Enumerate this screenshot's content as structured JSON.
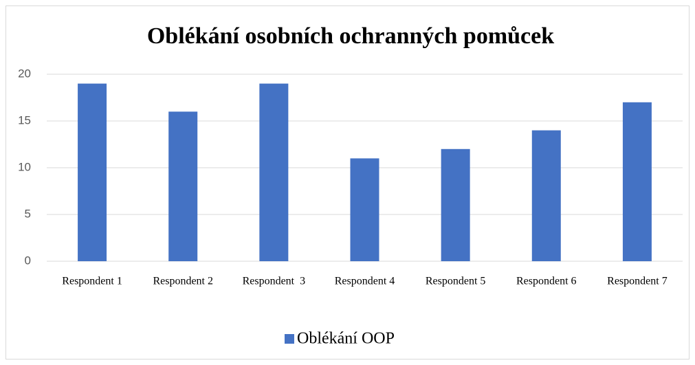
{
  "chart_data": {
    "type": "bar",
    "title": "Oblékání osobních ochranných pomůcek",
    "categories": [
      "Respondent 1",
      "Respondent 2",
      "Respondent  3",
      "Respondent 4",
      "Respondent 5",
      "Respondent 6",
      "Respondent 7"
    ],
    "series": [
      {
        "name": "Oblékání OOP",
        "color": "#4472c4",
        "values": [
          19,
          16,
          19,
          11,
          12,
          14,
          17
        ]
      }
    ],
    "ylim": [
      0,
      20
    ],
    "yticks": [
      0,
      5,
      10,
      15,
      20
    ],
    "grid": true,
    "legend": "bottom"
  }
}
